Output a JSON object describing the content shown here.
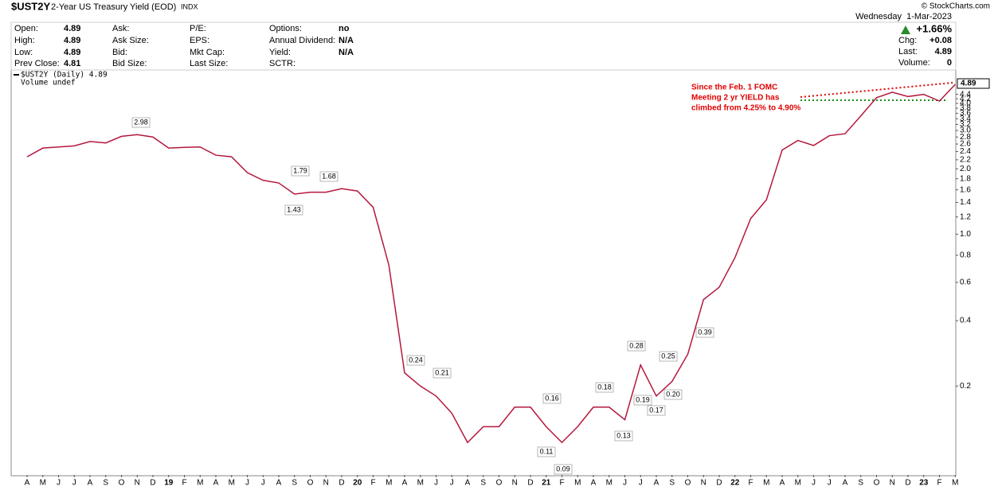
{
  "header": {
    "symbol": "$UST2Y",
    "name": "2-Year US Treasury Yield (EOD)",
    "exchange": "INDX",
    "copyright": "© StockCharts.com",
    "date": "Wednesday  1-Mar-2023",
    "change_pct": "+1.66%",
    "fields": [
      [
        {
          "label": "Open:",
          "value": "4.89"
        },
        {
          "label": "High:",
          "value": "4.89"
        },
        {
          "label": "Low:",
          "value": "4.89"
        },
        {
          "label": "Prev Close:",
          "value": "4.81"
        }
      ],
      [
        {
          "label": "Ask:"
        },
        {
          "label": "Ask Size:"
        },
        {
          "label": "Bid:"
        },
        {
          "label": "Bid Size:"
        }
      ],
      [
        {
          "label": "P/E:"
        },
        {
          "label": "EPS:"
        },
        {
          "label": "Mkt Cap:"
        },
        {
          "label": "Last Size:"
        }
      ],
      [
        {
          "label": "Options:",
          "value": "no"
        },
        {
          "label": "Annual Dividend:",
          "value": "N/A"
        },
        {
          "label": "Yield:",
          "value": "N/A"
        },
        {
          "label": "SCTR:"
        }
      ]
    ],
    "right_fields": [
      {
        "label": "Chg:",
        "value": "+0.08"
      },
      {
        "label": "Last:",
        "value": "4.89"
      },
      {
        "label": "Volume:",
        "value": "0"
      }
    ]
  },
  "chart_data": {
    "type": "line",
    "legend": [
      "$UST2Y (Daily) 4.89",
      "Volume undef"
    ],
    "note": [
      "Since the Feb. 1 FOMC",
      "Meeting 2 yr YIELD has",
      "climbed from 4.25% to 4.90%"
    ],
    "last_value": 4.89,
    "log_scale": true,
    "categories": [
      "A",
      "M",
      "J",
      "J",
      "A",
      "S",
      "O",
      "N",
      "D",
      "19",
      "F",
      "M",
      "A",
      "M",
      "J",
      "J",
      "A",
      "S",
      "O",
      "N",
      "D",
      "20",
      "F",
      "M",
      "A",
      "M",
      "J",
      "J",
      "A",
      "S",
      "O",
      "N",
      "D",
      "21",
      "F",
      "M",
      "A",
      "M",
      "J",
      "J",
      "A",
      "S",
      "O",
      "N",
      "D",
      "22",
      "F",
      "M",
      "A",
      "M",
      "J",
      "J",
      "A",
      "S",
      "O",
      "N",
      "D",
      "23",
      "F",
      "M"
    ],
    "series": [
      {
        "name": "$UST2Y",
        "color": "#b5173c",
        "values": [
          2.27,
          2.49,
          2.52,
          2.55,
          2.67,
          2.63,
          2.82,
          2.87,
          2.8,
          2.49,
          2.51,
          2.52,
          2.31,
          2.27,
          1.92,
          1.77,
          1.72,
          1.53,
          1.56,
          1.56,
          1.62,
          1.58,
          1.33,
          0.72,
          0.23,
          0.2,
          0.18,
          0.15,
          0.11,
          0.13,
          0.13,
          0.16,
          0.16,
          0.13,
          0.11,
          0.13,
          0.16,
          0.16,
          0.14,
          0.25,
          0.18,
          0.21,
          0.28,
          0.5,
          0.57,
          0.78,
          1.18,
          1.44,
          2.44,
          2.7,
          2.56,
          2.84,
          2.9,
          3.5,
          4.25,
          4.5,
          4.3,
          4.4,
          4.1,
          4.89
        ]
      }
    ],
    "annotations": [
      2.98,
      1.79,
      1.68,
      1.43,
      0.24,
      0.21,
      0.16,
      0.18,
      0.28,
      0.25,
      0.11,
      0.09,
      0.13,
      0.19,
      0.17,
      {
        "value": 0.2,
        "label": "0.20"
      },
      0.39
    ],
    "ylim": [
      0.078,
      5.28
    ],
    "yticks": [
      0.2,
      0.4,
      0.6,
      0.8,
      {
        "value": 1,
        "label": "1.0"
      },
      1.2,
      1.4,
      1.6,
      1.8,
      {
        "value": 2,
        "label": "2.0"
      },
      2.2,
      2.4,
      2.6,
      2.8,
      {
        "value": 3,
        "label": "3.0"
      },
      3.2,
      3.4,
      3.6,
      3.8,
      {
        "value": 4,
        "label": "4.0"
      },
      4.2,
      4.4
    ],
    "grid": false
  }
}
